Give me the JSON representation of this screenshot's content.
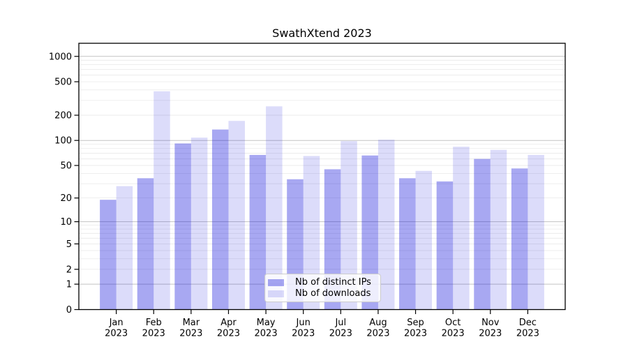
{
  "title": "SwathXtend 2023",
  "chart_data": {
    "type": "bar",
    "title": "SwathXtend 2023",
    "categories": [
      "Jan 2023",
      "Feb 2023",
      "Mar 2023",
      "Apr 2023",
      "May 2023",
      "Jun 2023",
      "Jul 2023",
      "Aug 2023",
      "Sep 2023",
      "Oct 2023",
      "Nov 2023",
      "Dec 2023"
    ],
    "series": [
      {
        "name": "Nb of distinct IPs",
        "color": "rgba(6,6,218,0.35)",
        "values": [
          19,
          35,
          92,
          135,
          67,
          34,
          45,
          66,
          35,
          32,
          60,
          46
        ]
      },
      {
        "name": "Nb of downloads",
        "color": "rgba(6,6,218,0.14)",
        "values": [
          28,
          385,
          108,
          171,
          255,
          65,
          98,
          102,
          43,
          84,
          77,
          67
        ]
      }
    ],
    "yscale": "log10(1+y)",
    "yticks": [
      0,
      1,
      2,
      5,
      10,
      20,
      50,
      100,
      200,
      500,
      1000
    ],
    "ylim": [
      0,
      1430
    ],
    "grid": true,
    "legend_position": "lower center"
  },
  "colors": {
    "minor_gridline": "#e9e9e9",
    "major_gridline": "#c3c3c3",
    "axis": "#000000",
    "text": "#000000",
    "background": "#ffffff"
  }
}
